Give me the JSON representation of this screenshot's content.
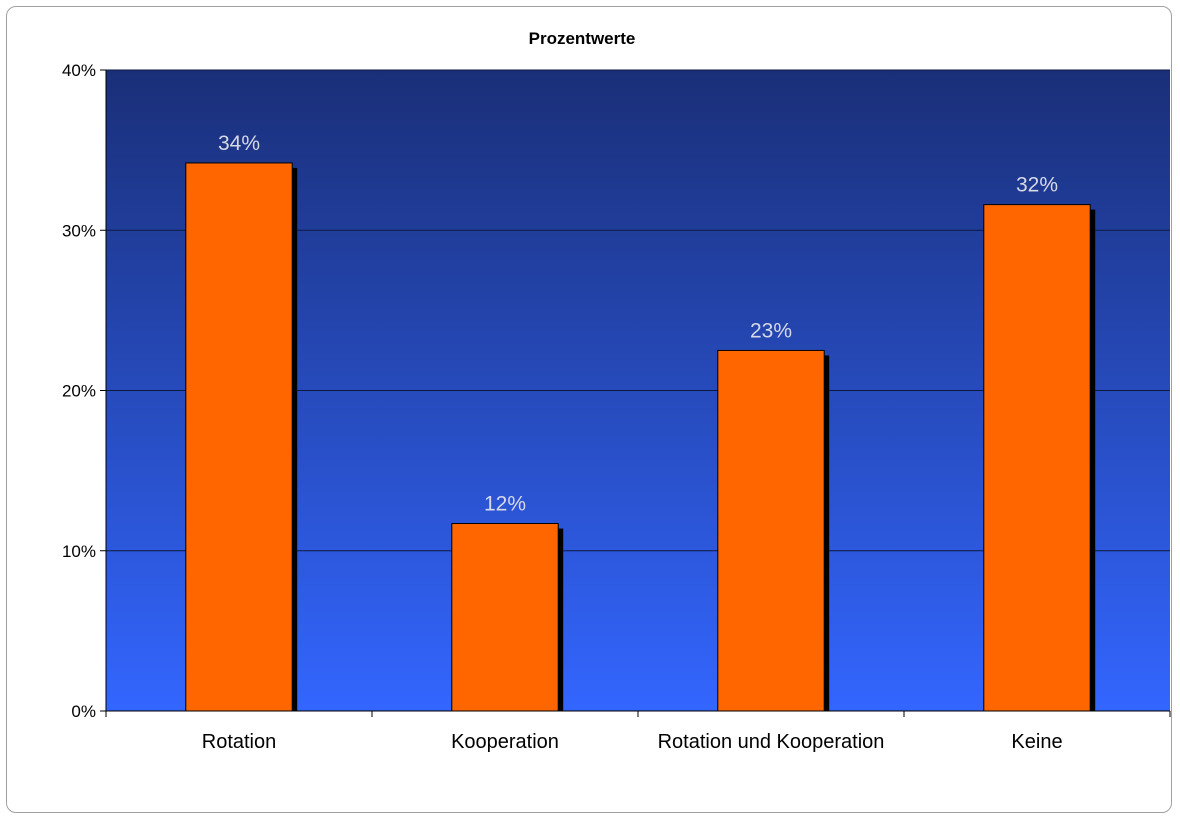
{
  "chart_data": {
    "type": "bar",
    "title": "Prozentwerte",
    "categories": [
      "Rotation",
      "Kooperation",
      "Rotation und Kooperation",
      "Keine"
    ],
    "values": [
      34.2,
      11.7,
      22.5,
      31.6
    ],
    "data_labels": [
      "34%",
      "12%",
      "23%",
      "32%"
    ],
    "ylim": [
      0,
      40
    ],
    "y_ticks": [
      0,
      10,
      20,
      30,
      40
    ],
    "y_tick_labels": [
      "0%",
      "10%",
      "20%",
      "30%",
      "40%"
    ],
    "grid": true,
    "legend": "none",
    "colors": {
      "bar": "#ff6600",
      "bar_shadow": "#000000",
      "plot_top": "#1a2f78",
      "plot_bottom": "#3366ff",
      "data_label": "#d6d9e6"
    }
  }
}
